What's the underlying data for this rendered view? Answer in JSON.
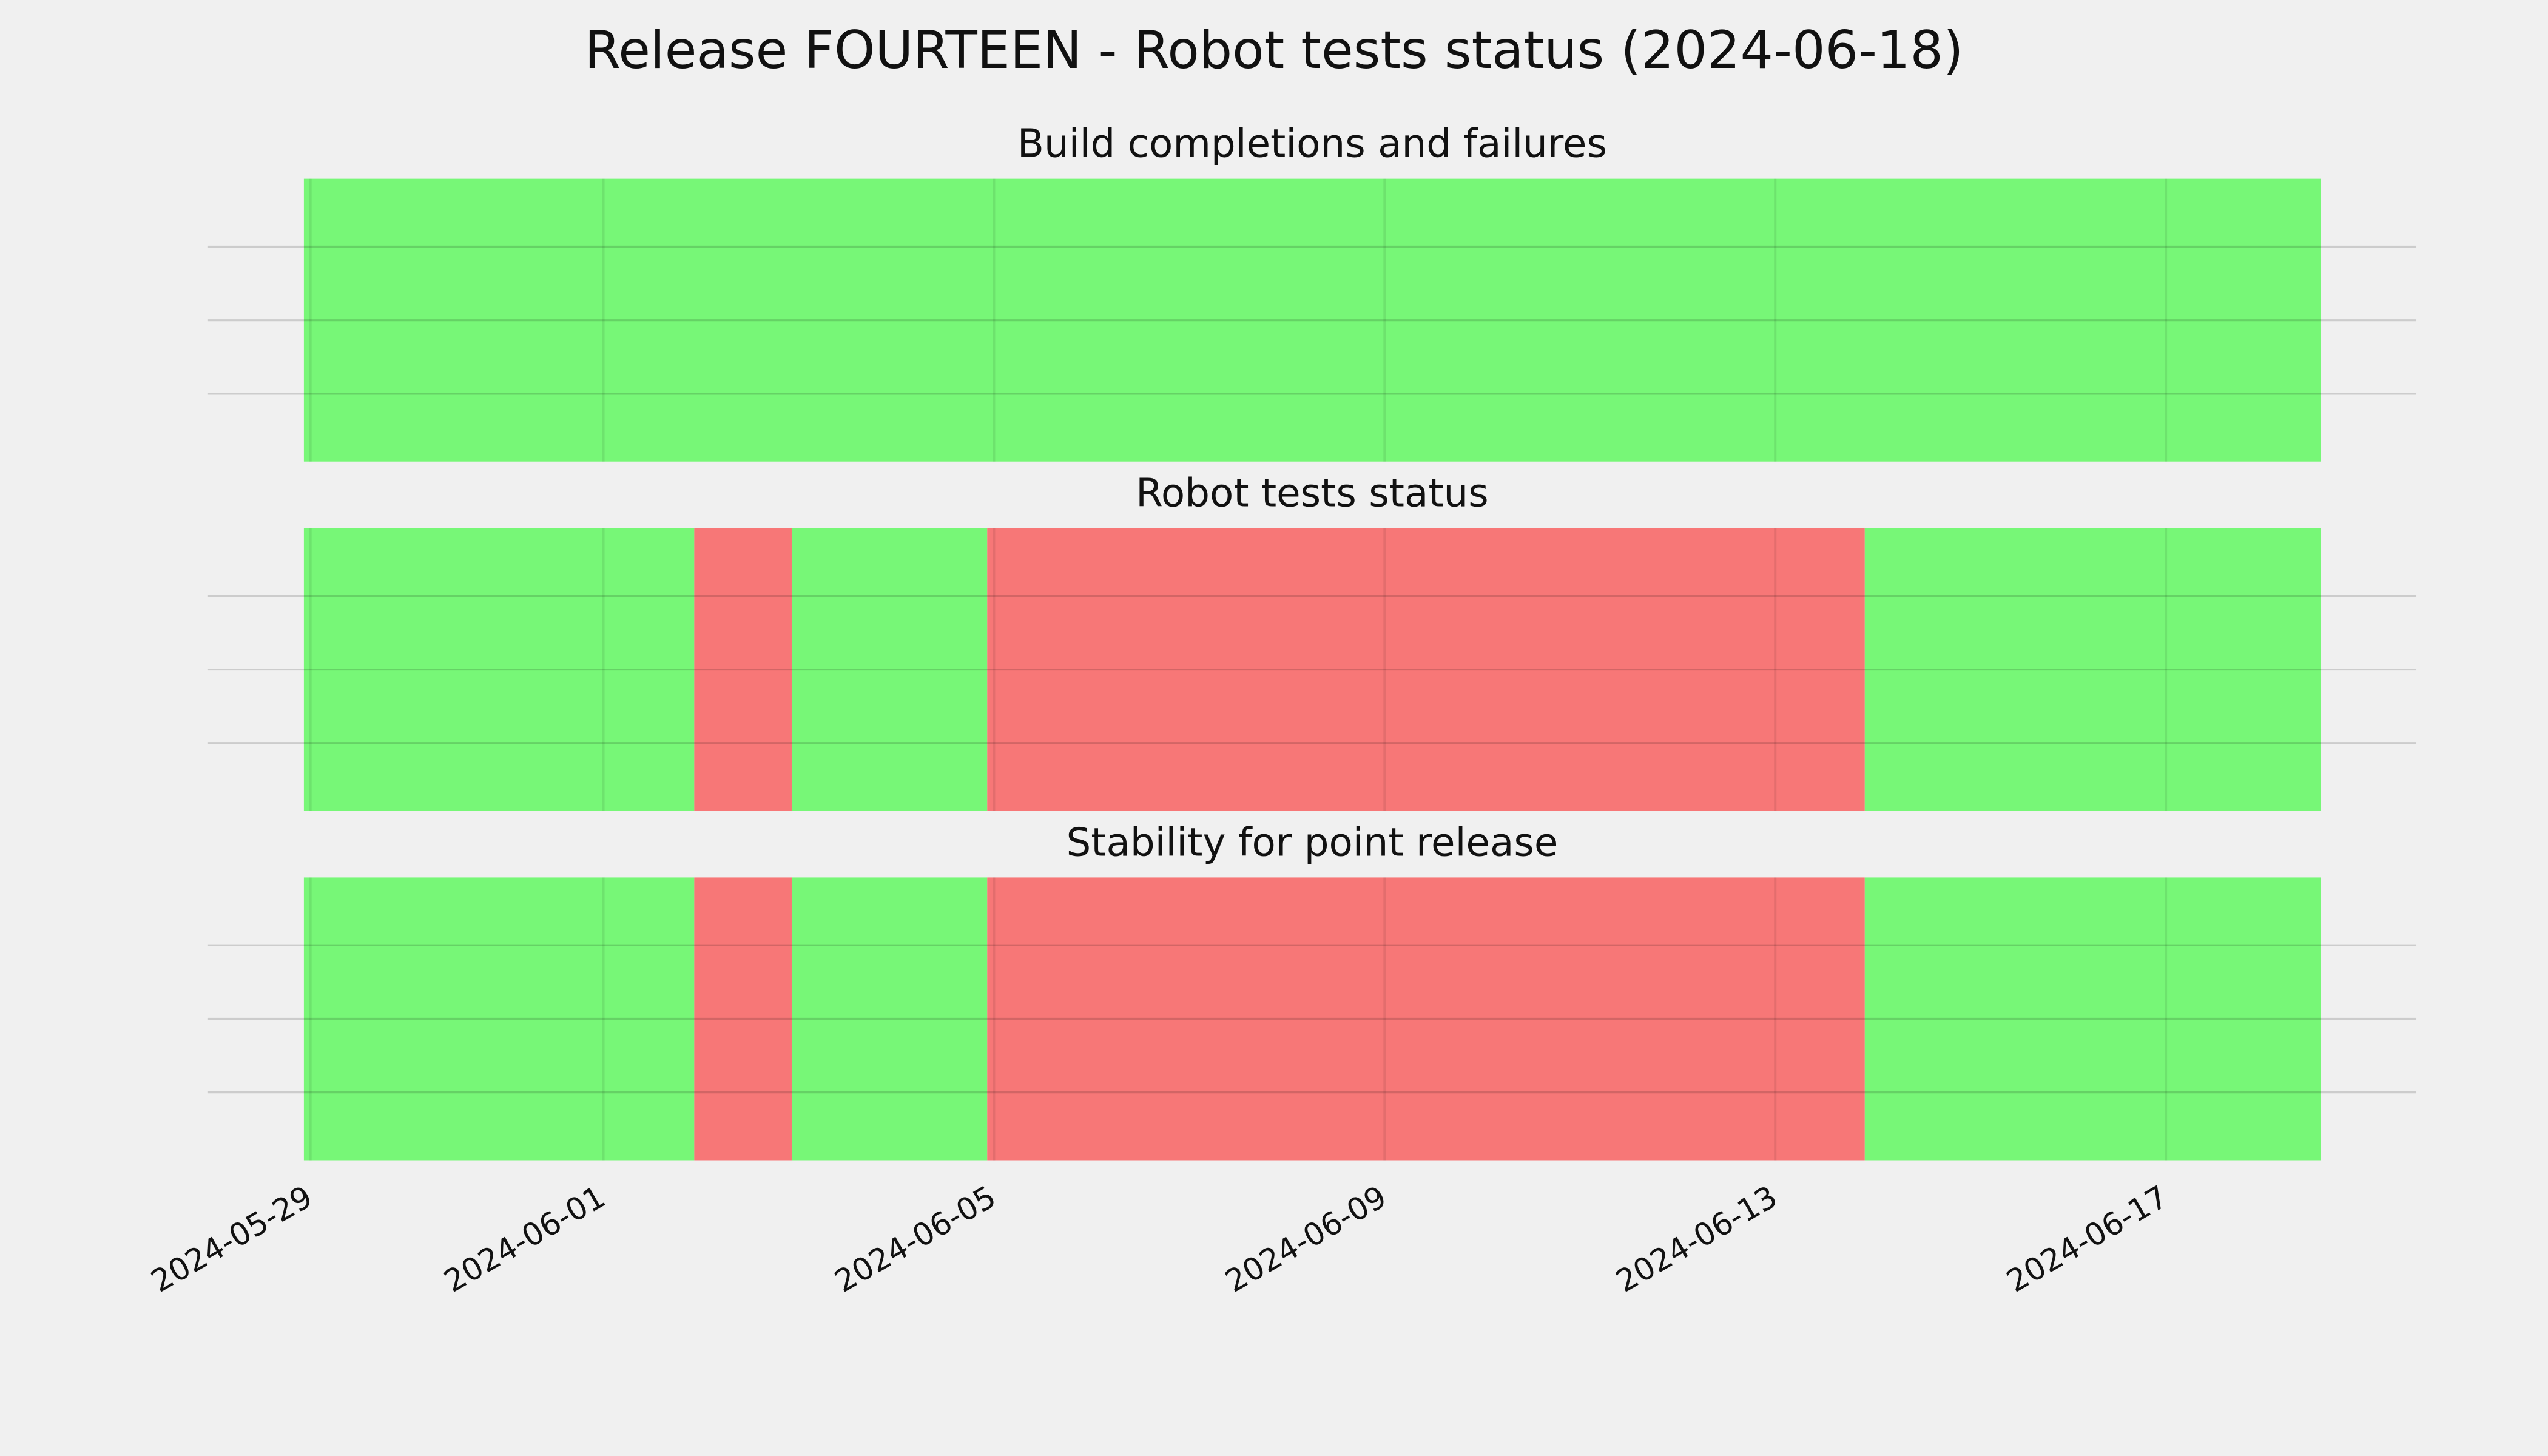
{
  "chart_data": {
    "type": "timeline",
    "title": "Release FOURTEEN - Robot tests status (2024-06-18)",
    "xlim": [
      "2024-05-28 22:24",
      "2024-06-18 14:00"
    ],
    "xticks": [
      "2024-05-29",
      "2024-06-01",
      "2024-06-05",
      "2024-06-09",
      "2024-06-13",
      "2024-06-17"
    ],
    "grid": true,
    "panels": [
      {
        "title": "Build completions and failures",
        "spans": [
          {
            "start": "2024-05-28 22:24",
            "end": "2024-06-18 14:00",
            "color": "#77f777"
          }
        ]
      },
      {
        "title": "Robot tests status",
        "spans": [
          {
            "start": "2024-05-28 22:24",
            "end": "2024-06-01 22:20",
            "color": "#77f777"
          },
          {
            "start": "2024-06-01 22:20",
            "end": "2024-06-02 22:20",
            "color": "#f77777"
          },
          {
            "start": "2024-06-02 22:20",
            "end": "2024-06-04 22:20",
            "color": "#77f777"
          },
          {
            "start": "2024-06-04 22:20",
            "end": "2024-06-13 22:00",
            "color": "#f77777"
          },
          {
            "start": "2024-06-13 22:00",
            "end": "2024-06-18 14:00",
            "color": "#77f777"
          }
        ]
      },
      {
        "title": "Stability for point release",
        "spans": [
          {
            "start": "2024-05-28 22:24",
            "end": "2024-06-01 22:20",
            "color": "#77f777"
          },
          {
            "start": "2024-06-01 22:20",
            "end": "2024-06-02 22:20",
            "color": "#f77777"
          },
          {
            "start": "2024-06-02 22:20",
            "end": "2024-06-04 22:20",
            "color": "#77f777"
          },
          {
            "start": "2024-06-04 22:20",
            "end": "2024-06-13 22:00",
            "color": "#f77777"
          },
          {
            "start": "2024-06-13 22:00",
            "end": "2024-06-18 14:00",
            "color": "#77f777"
          }
        ]
      }
    ]
  }
}
